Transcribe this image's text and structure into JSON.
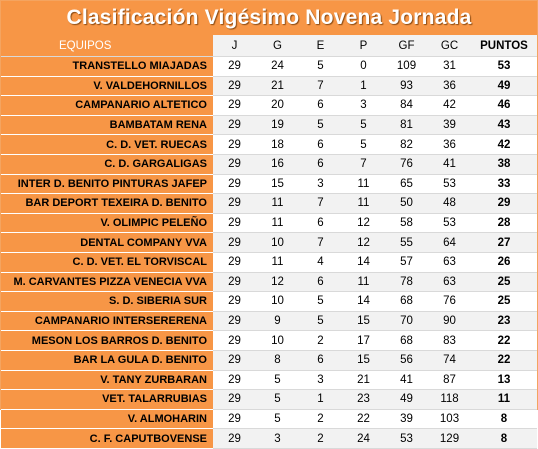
{
  "title": "Clasificación Vigésimo Novena Jornada",
  "columns": {
    "team": "EQUIPOS",
    "j": "J",
    "g": "G",
    "e": "E",
    "p": "P",
    "gf": "GF",
    "gc": "GC",
    "pts": "PUNTOS"
  },
  "rows": [
    {
      "team": "TRANSTELLO MIAJADAS",
      "j": "29",
      "g": "24",
      "e": "5",
      "p": "0",
      "gf": "109",
      "gc": "31",
      "pts": "53"
    },
    {
      "team": "V. VALDEHORNILLOS",
      "j": "29",
      "g": "21",
      "e": "7",
      "p": "1",
      "gf": "93",
      "gc": "36",
      "pts": "49"
    },
    {
      "team": "CAMPANARIO ALTETICO",
      "j": "29",
      "g": "20",
      "e": "6",
      "p": "3",
      "gf": "84",
      "gc": "42",
      "pts": "46"
    },
    {
      "team": "BAMBATAM RENA",
      "j": "29",
      "g": "19",
      "e": "5",
      "p": "5",
      "gf": "81",
      "gc": "39",
      "pts": "43"
    },
    {
      "team": "C. D. VET. RUECAS",
      "j": "29",
      "g": "18",
      "e": "6",
      "p": "5",
      "gf": "82",
      "gc": "36",
      "pts": "42"
    },
    {
      "team": "C. D. GARGALIGAS",
      "j": "29",
      "g": "16",
      "e": "6",
      "p": "7",
      "gf": "76",
      "gc": "41",
      "pts": "38"
    },
    {
      "team": "INTER D. BENITO PINTURAS JAFEP",
      "j": "29",
      "g": "15",
      "e": "3",
      "p": "11",
      "gf": "65",
      "gc": "53",
      "pts": "33"
    },
    {
      "team": "BAR DEPORT TEXEIRA  D. BENITO",
      "j": "29",
      "g": "11",
      "e": "7",
      "p": "11",
      "gf": "50",
      "gc": "48",
      "pts": "29"
    },
    {
      "team": "V. OLIMPIC PELEÑO",
      "j": "29",
      "g": "11",
      "e": "6",
      "p": "12",
      "gf": "58",
      "gc": "53",
      "pts": "28"
    },
    {
      "team": "DENTAL COMPANY VVA",
      "j": "29",
      "g": "10",
      "e": "7",
      "p": "12",
      "gf": "55",
      "gc": "64",
      "pts": "27"
    },
    {
      "team": "C. D. VET. EL TORVISCAL",
      "j": "29",
      "g": "11",
      "e": "4",
      "p": "14",
      "gf": "57",
      "gc": "63",
      "pts": "26"
    },
    {
      "team": "M. CARVANTES PIZZA VENECIA VVA",
      "j": "29",
      "g": "12",
      "e": "6",
      "p": "11",
      "gf": "78",
      "gc": "63",
      "pts": "25"
    },
    {
      "team": "S. D. SIBERIA SUR",
      "j": "29",
      "g": "10",
      "e": "5",
      "p": "14",
      "gf": "68",
      "gc": "76",
      "pts": "25"
    },
    {
      "team": "CAMPANARIO INTERSERERENA",
      "j": "29",
      "g": "9",
      "e": "5",
      "p": "15",
      "gf": "70",
      "gc": "90",
      "pts": "23"
    },
    {
      "team": "MESON LOS BARROS D. BENITO",
      "j": "29",
      "g": "10",
      "e": "2",
      "p": "17",
      "gf": "68",
      "gc": "83",
      "pts": "22"
    },
    {
      "team": "BAR LA GULA D. BENITO",
      "j": "29",
      "g": "8",
      "e": "6",
      "p": "15",
      "gf": "56",
      "gc": "74",
      "pts": "22"
    },
    {
      "team": "V. TANY ZURBARAN",
      "j": "29",
      "g": "5",
      "e": "3",
      "p": "21",
      "gf": "41",
      "gc": "87",
      "pts": "13"
    },
    {
      "team": "VET. TALARRUBIAS",
      "j": "29",
      "g": "5",
      "e": "1",
      "p": "23",
      "gf": "49",
      "gc": "118",
      "pts": "11"
    },
    {
      "team": "V. ALMOHARIN",
      "j": "29",
      "g": "5",
      "e": "2",
      "p": "22",
      "gf": "39",
      "gc": "103",
      "pts": "8"
    },
    {
      "team": "C. F. CAPUTBOVENSE",
      "j": "29",
      "g": "3",
      "e": "2",
      "p": "24",
      "gf": "53",
      "gc": "129",
      "pts": "8"
    }
  ]
}
